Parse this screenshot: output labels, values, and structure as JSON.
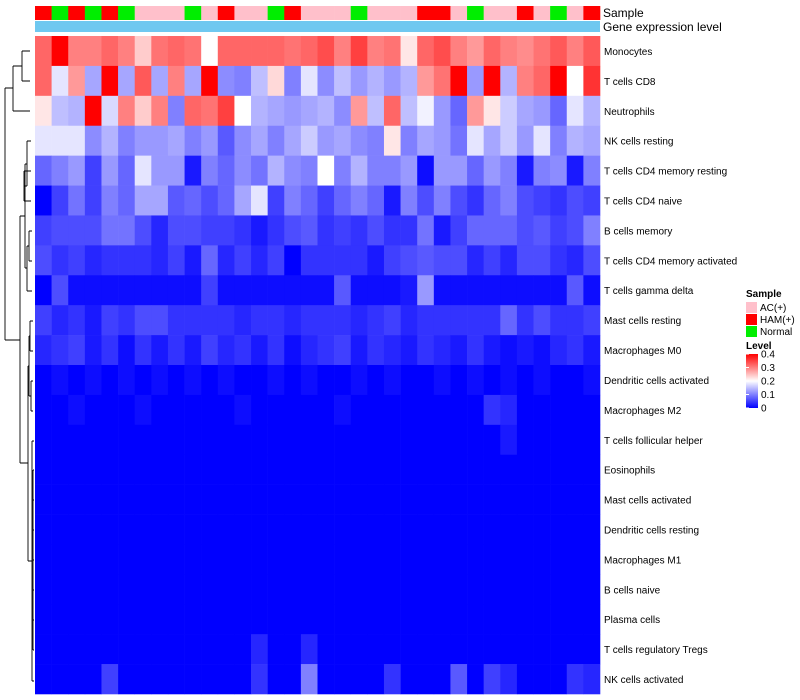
{
  "chart_data": {
    "type": "heatmap",
    "title": "",
    "annotations": [
      {
        "name": "Sample",
        "type": "categorical"
      },
      {
        "name": "Gene expression level",
        "type": "constant",
        "color": "#6fc8f0"
      }
    ],
    "samples": [
      "HAM(+)",
      "Normal",
      "HAM(+)",
      "Normal",
      "HAM(+)",
      "Normal",
      "AC(+)",
      "AC(+)",
      "AC(+)",
      "Normal",
      "AC(+)",
      "HAM(+)",
      "AC(+)",
      "AC(+)",
      "Normal",
      "HAM(+)",
      "AC(+)",
      "AC(+)",
      "AC(+)",
      "Normal",
      "AC(+)",
      "AC(+)",
      "AC(+)",
      "HAM(+)",
      "HAM(+)",
      "AC(+)",
      "Normal",
      "AC(+)",
      "AC(+)",
      "HAM(+)",
      "AC(+)",
      "Normal",
      "AC(+)",
      "HAM(+)"
    ],
    "rows": [
      "Monocytes",
      "T cells CD8",
      "Neutrophils",
      "NK cells resting",
      "T cells CD4 memory resting",
      "T cells CD4 naive",
      "B cells memory",
      "T cells CD4 memory activated",
      "T cells gamma delta",
      "Mast cells resting",
      "Macrophages M0",
      "Dendritic cells activated",
      "Macrophages M2",
      "T cells follicular helper",
      "Eosinophils",
      "Mast cells activated",
      "Dendritic cells resting",
      "Macrophages M1",
      "B cells naive",
      "Plasma cells",
      "T cells regulatory  Tregs",
      "NK cells activated"
    ],
    "values": [
      [
        0.32,
        0.4,
        0.3,
        0.3,
        0.32,
        0.3,
        0.24,
        0.31,
        0.32,
        0.31,
        0.2,
        0.32,
        0.32,
        0.32,
        0.32,
        0.31,
        0.32,
        0.34,
        0.3,
        0.35,
        0.3,
        0.31,
        0.22,
        0.32,
        0.34,
        0.3,
        0.28,
        0.32,
        0.3,
        0.29,
        0.31,
        0.33,
        0.3,
        0.33
      ],
      [
        0.32,
        0.18,
        0.28,
        0.13,
        0.4,
        0.13,
        0.33,
        0.13,
        0.3,
        0.13,
        0.4,
        0.11,
        0.1,
        0.15,
        0.23,
        0.1,
        0.18,
        0.11,
        0.15,
        0.12,
        0.14,
        0.12,
        0.14,
        0.28,
        0.31,
        0.4,
        0.12,
        0.4,
        0.14,
        0.3,
        0.32,
        0.4,
        0.2,
        0.36
      ],
      [
        0.22,
        0.15,
        0.14,
        0.4,
        0.17,
        0.3,
        0.24,
        0.3,
        0.1,
        0.32,
        0.31,
        0.35,
        0.2,
        0.14,
        0.13,
        0.12,
        0.13,
        0.14,
        0.11,
        0.28,
        0.15,
        0.32,
        0.15,
        0.19,
        0.12,
        0.08,
        0.28,
        0.22,
        0.16,
        0.13,
        0.12,
        0.08,
        0.18,
        0.14
      ],
      [
        0.18,
        0.18,
        0.18,
        0.11,
        0.14,
        0.1,
        0.12,
        0.12,
        0.13,
        0.1,
        0.12,
        0.07,
        0.11,
        0.13,
        0.1,
        0.13,
        0.16,
        0.12,
        0.13,
        0.11,
        0.1,
        0.22,
        0.1,
        0.13,
        0.12,
        0.09,
        0.18,
        0.13,
        0.16,
        0.12,
        0.18,
        0.1,
        0.14,
        0.13
      ],
      [
        0.08,
        0.1,
        0.12,
        0.05,
        0.12,
        0.08,
        0.18,
        0.12,
        0.12,
        0.02,
        0.1,
        0.08,
        0.11,
        0.09,
        0.14,
        0.11,
        0.1,
        0.2,
        0.1,
        0.14,
        0.1,
        0.1,
        0.12,
        0.01,
        0.12,
        0.12,
        0.08,
        0.12,
        0.1,
        0.02,
        0.1,
        0.11,
        0.02,
        0.1
      ],
      [
        0.0,
        0.05,
        0.09,
        0.05,
        0.1,
        0.08,
        0.13,
        0.13,
        0.07,
        0.08,
        0.06,
        0.08,
        0.13,
        0.18,
        0.05,
        0.1,
        0.08,
        0.05,
        0.08,
        0.1,
        0.08,
        0.02,
        0.1,
        0.06,
        0.1,
        0.06,
        0.04,
        0.08,
        0.1,
        0.06,
        0.05,
        0.04,
        0.06,
        0.05
      ],
      [
        0.05,
        0.06,
        0.06,
        0.06,
        0.09,
        0.09,
        0.06,
        0.03,
        0.06,
        0.06,
        0.05,
        0.05,
        0.04,
        0.02,
        0.04,
        0.06,
        0.07,
        0.04,
        0.05,
        0.04,
        0.06,
        0.04,
        0.04,
        0.09,
        0.02,
        0.05,
        0.08,
        0.08,
        0.08,
        0.06,
        0.07,
        0.05,
        0.06,
        0.1
      ],
      [
        0.06,
        0.04,
        0.05,
        0.03,
        0.04,
        0.04,
        0.04,
        0.03,
        0.05,
        0.02,
        0.08,
        0.03,
        0.05,
        0.03,
        0.05,
        0.0,
        0.04,
        0.04,
        0.04,
        0.04,
        0.02,
        0.05,
        0.06,
        0.07,
        0.06,
        0.06,
        0.03,
        0.05,
        0.03,
        0.06,
        0.06,
        0.04,
        0.03,
        0.06
      ],
      [
        0.0,
        0.06,
        0.01,
        0.01,
        0.01,
        0.01,
        0.01,
        0.01,
        0.01,
        0.01,
        0.05,
        0.01,
        0.01,
        0.01,
        0.01,
        0.01,
        0.01,
        0.01,
        0.07,
        0.01,
        0.01,
        0.01,
        0.02,
        0.12,
        0.01,
        0.01,
        0.01,
        0.01,
        0.01,
        0.01,
        0.01,
        0.01,
        0.07,
        0.01
      ],
      [
        0.05,
        0.03,
        0.04,
        0.02,
        0.05,
        0.04,
        0.06,
        0.06,
        0.04,
        0.04,
        0.04,
        0.04,
        0.03,
        0.04,
        0.04,
        0.03,
        0.04,
        0.04,
        0.04,
        0.03,
        0.04,
        0.05,
        0.03,
        0.04,
        0.04,
        0.04,
        0.04,
        0.04,
        0.08,
        0.04,
        0.06,
        0.04,
        0.04,
        0.05
      ],
      [
        0.03,
        0.04,
        0.05,
        0.02,
        0.04,
        0.01,
        0.04,
        0.02,
        0.04,
        0.02,
        0.05,
        0.03,
        0.04,
        0.02,
        0.04,
        0.01,
        0.03,
        0.04,
        0.05,
        0.02,
        0.04,
        0.03,
        0.02,
        0.04,
        0.03,
        0.02,
        0.04,
        0.02,
        0.01,
        0.02,
        0.01,
        0.03,
        0.04,
        0.02
      ],
      [
        0.0,
        0.01,
        0.0,
        0.01,
        0.0,
        0.01,
        0.0,
        0.01,
        0.0,
        0.01,
        0.0,
        0.01,
        0.0,
        0.0,
        0.01,
        0.0,
        0.01,
        0.0,
        0.0,
        0.01,
        0.0,
        0.01,
        0.0,
        0.0,
        0.01,
        0.0,
        0.01,
        0.0,
        0.01,
        0.0,
        0.01,
        0.0,
        0.0,
        0.01
      ],
      [
        0.0,
        0.0,
        0.01,
        0.0,
        0.0,
        0.0,
        0.01,
        0.0,
        0.0,
        0.0,
        0.0,
        0.0,
        0.01,
        0.0,
        0.0,
        0.0,
        0.0,
        0.0,
        0.01,
        0.0,
        0.0,
        0.0,
        0.0,
        0.0,
        0.0,
        0.0,
        0.0,
        0.04,
        0.03,
        0.0,
        0.0,
        0.0,
        0.0,
        0.0
      ],
      [
        0.0,
        0.0,
        0.0,
        0.0,
        0.0,
        0.0,
        0.0,
        0.0,
        0.0,
        0.0,
        0.0,
        0.0,
        0.0,
        0.0,
        0.0,
        0.0,
        0.0,
        0.0,
        0.0,
        0.0,
        0.0,
        0.0,
        0.0,
        0.0,
        0.0,
        0.0,
        0.0,
        0.0,
        0.02,
        0.0,
        0.0,
        0.0,
        0.0,
        0.0
      ],
      [
        0.0,
        0.0,
        0.0,
        0.0,
        0.0,
        0.0,
        0.0,
        0.0,
        0.0,
        0.0,
        0.0,
        0.0,
        0.0,
        0.0,
        0.0,
        0.0,
        0.0,
        0.0,
        0.0,
        0.0,
        0.0,
        0.0,
        0.0,
        0.0,
        0.0,
        0.0,
        0.0,
        0.0,
        0.0,
        0.0,
        0.0,
        0.0,
        0.0,
        0.0
      ],
      [
        0.0,
        0.0,
        0.0,
        0.0,
        0.0,
        0.0,
        0.0,
        0.0,
        0.0,
        0.0,
        0.0,
        0.0,
        0.0,
        0.0,
        0.0,
        0.0,
        0.0,
        0.0,
        0.0,
        0.0,
        0.0,
        0.0,
        0.0,
        0.0,
        0.0,
        0.0,
        0.0,
        0.0,
        0.0,
        0.0,
        0.0,
        0.0,
        0.0,
        0.0
      ],
      [
        0.0,
        0.0,
        0.0,
        0.0,
        0.0,
        0.0,
        0.0,
        0.0,
        0.0,
        0.0,
        0.0,
        0.0,
        0.0,
        0.0,
        0.0,
        0.0,
        0.0,
        0.0,
        0.0,
        0.0,
        0.0,
        0.0,
        0.0,
        0.0,
        0.0,
        0.0,
        0.0,
        0.0,
        0.0,
        0.0,
        0.0,
        0.0,
        0.0,
        0.0
      ],
      [
        0.0,
        0.0,
        0.0,
        0.0,
        0.0,
        0.0,
        0.0,
        0.0,
        0.0,
        0.0,
        0.0,
        0.0,
        0.0,
        0.0,
        0.0,
        0.0,
        0.0,
        0.0,
        0.0,
        0.0,
        0.0,
        0.0,
        0.0,
        0.0,
        0.0,
        0.0,
        0.0,
        0.0,
        0.0,
        0.0,
        0.0,
        0.0,
        0.0,
        0.0
      ],
      [
        0.0,
        0.0,
        0.0,
        0.0,
        0.0,
        0.0,
        0.0,
        0.0,
        0.0,
        0.0,
        0.0,
        0.0,
        0.0,
        0.0,
        0.0,
        0.0,
        0.0,
        0.0,
        0.0,
        0.0,
        0.0,
        0.0,
        0.0,
        0.0,
        0.0,
        0.0,
        0.0,
        0.0,
        0.0,
        0.0,
        0.0,
        0.0,
        0.0,
        0.0
      ],
      [
        0.0,
        0.0,
        0.0,
        0.0,
        0.0,
        0.0,
        0.0,
        0.0,
        0.0,
        0.0,
        0.0,
        0.0,
        0.0,
        0.0,
        0.0,
        0.0,
        0.0,
        0.0,
        0.0,
        0.0,
        0.0,
        0.0,
        0.0,
        0.0,
        0.0,
        0.0,
        0.0,
        0.0,
        0.0,
        0.0,
        0.0,
        0.0,
        0.0,
        0.0
      ],
      [
        0.0,
        0.0,
        0.0,
        0.0,
        0.0,
        0.0,
        0.0,
        0.0,
        0.0,
        0.0,
        0.0,
        0.0,
        0.0,
        0.03,
        0.0,
        0.0,
        0.03,
        0.0,
        0.0,
        0.0,
        0.0,
        0.0,
        0.0,
        0.0,
        0.0,
        0.0,
        0.0,
        0.0,
        0.0,
        0.0,
        0.0,
        0.0,
        0.0,
        0.0
      ],
      [
        0.0,
        0.0,
        0.0,
        0.0,
        0.05,
        0.0,
        0.0,
        0.0,
        0.0,
        0.0,
        0.0,
        0.0,
        0.0,
        0.04,
        0.0,
        0.0,
        0.1,
        0.0,
        0.0,
        0.0,
        0.0,
        0.04,
        0.0,
        0.0,
        0.0,
        0.07,
        0.0,
        0.05,
        0.03,
        0.0,
        0.0,
        0.0,
        0.04,
        0.03
      ]
    ],
    "legend": {
      "sample_title": "Sample",
      "sample_entries": [
        {
          "label": "AC(+)",
          "color": "#ffc0cb"
        },
        {
          "label": "HAM(+)",
          "color": "#ff0000"
        },
        {
          "label": "Normal",
          "color": "#00ee00"
        }
      ],
      "level_title": "Level",
      "level_ticks": [
        "0.4",
        "0.3",
        "0.2",
        "0.1",
        "0"
      ],
      "level_range": [
        0,
        0.4
      ],
      "gradient": [
        "#0000ff",
        "#ffffff",
        "#ff0000"
      ],
      "placement": "right"
    }
  }
}
